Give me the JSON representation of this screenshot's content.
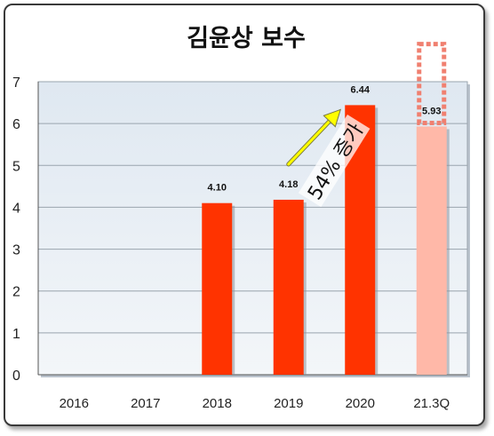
{
  "chart_data": {
    "type": "bar",
    "title": "김윤상 보수",
    "xlabel": "",
    "ylabel": "",
    "categories": [
      "2016",
      "2017",
      "2018",
      "2019",
      "2020",
      "21.3Q"
    ],
    "values": [
      null,
      null,
      4.1,
      4.18,
      6.44,
      5.93
    ],
    "data_labels": [
      "",
      "",
      "4.10",
      "4.18",
      "6.44",
      "5.93"
    ],
    "ylim": [
      0,
      7
    ],
    "yticks": [
      "0",
      "1",
      "2",
      "3",
      "4",
      "5",
      "6",
      "7"
    ],
    "grid": true,
    "legend": "none",
    "colors": {
      "bar": "#ff3300",
      "bar_partial": "#ffb8a8",
      "projection_outline": "#f08070",
      "arrow": "#ffff00",
      "plot_bg": "#e8eff6"
    },
    "partial_bar_index": 5,
    "projected_full_year": 7.9,
    "annotation": {
      "text": "54% 증가",
      "from_category": "2019",
      "to_category": "2020"
    }
  }
}
